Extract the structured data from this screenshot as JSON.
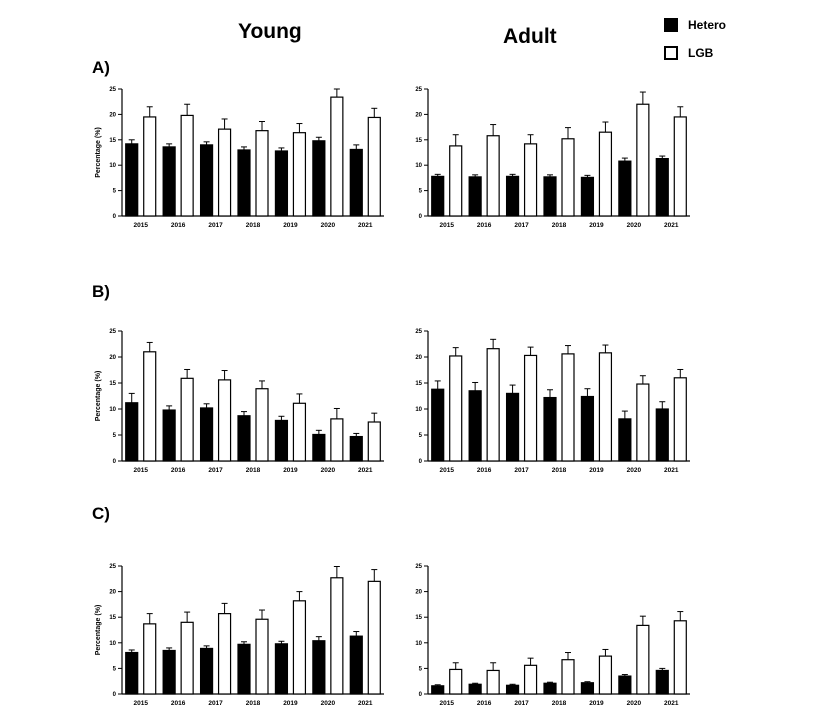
{
  "columns": [
    "Young",
    "Adult"
  ],
  "rows": [
    "A)",
    "B)",
    "C)"
  ],
  "legend": [
    {
      "name": "Hetero",
      "color": "#000000"
    },
    {
      "name": "LGB",
      "color": "#ffffff"
    }
  ],
  "chart_data": [
    {
      "type": "bar",
      "panel": "A) Young",
      "ylabel": "Percentage (%)",
      "ylim": [
        0,
        25
      ],
      "yticks": [
        0,
        5,
        10,
        15,
        20,
        25
      ],
      "categories": [
        "2015",
        "2016",
        "2017",
        "2018",
        "2019",
        "2020",
        "2021"
      ],
      "series": [
        {
          "name": "Hetero",
          "values": [
            14.2,
            13.6,
            14.0,
            13.0,
            12.8,
            14.8,
            13.1
          ],
          "errors": [
            0.8,
            0.6,
            0.6,
            0.6,
            0.6,
            0.7,
            0.9
          ]
        },
        {
          "name": "LGB",
          "values": [
            19.5,
            19.8,
            17.1,
            16.8,
            16.4,
            23.4,
            19.4
          ],
          "errors": [
            2.0,
            2.2,
            2.0,
            1.8,
            1.8,
            1.6,
            1.8
          ]
        }
      ]
    },
    {
      "type": "bar",
      "panel": "A) Adult",
      "ylabel": "",
      "ylim": [
        0,
        25
      ],
      "yticks": [
        0,
        5,
        10,
        15,
        20,
        25
      ],
      "categories": [
        "2015",
        "2016",
        "2017",
        "2018",
        "2019",
        "2020",
        "2021"
      ],
      "series": [
        {
          "name": "Hetero",
          "values": [
            7.8,
            7.7,
            7.8,
            7.7,
            7.6,
            10.8,
            11.3
          ],
          "errors": [
            0.4,
            0.4,
            0.4,
            0.4,
            0.4,
            0.6,
            0.5
          ]
        },
        {
          "name": "LGB",
          "values": [
            13.8,
            15.8,
            14.2,
            15.2,
            16.5,
            22.0,
            19.5
          ],
          "errors": [
            2.2,
            2.2,
            1.8,
            2.2,
            2.0,
            2.4,
            2.0
          ]
        }
      ]
    },
    {
      "type": "bar",
      "panel": "B) Young",
      "ylabel": "Percentage (%)",
      "ylim": [
        0,
        25
      ],
      "yticks": [
        0,
        5,
        10,
        15,
        20,
        25
      ],
      "categories": [
        "2015",
        "2016",
        "2017",
        "2018",
        "2019",
        "2020",
        "2021"
      ],
      "series": [
        {
          "name": "Hetero",
          "values": [
            11.2,
            9.8,
            10.2,
            8.7,
            7.8,
            5.1,
            4.7
          ],
          "errors": [
            1.8,
            0.8,
            0.8,
            0.8,
            0.8,
            0.8,
            0.6
          ]
        },
        {
          "name": "LGB",
          "values": [
            21.0,
            15.9,
            15.6,
            13.9,
            11.1,
            8.1,
            7.5
          ],
          "errors": [
            1.8,
            1.7,
            1.8,
            1.5,
            1.8,
            2.0,
            1.7
          ]
        }
      ]
    },
    {
      "type": "bar",
      "panel": "B) Adult",
      "ylabel": "",
      "ylim": [
        0,
        25
      ],
      "yticks": [
        0,
        5,
        10,
        15,
        20,
        25
      ],
      "categories": [
        "2015",
        "2016",
        "2017",
        "2018",
        "2019",
        "2020",
        "2021"
      ],
      "series": [
        {
          "name": "Hetero",
          "values": [
            13.8,
            13.5,
            13.0,
            12.2,
            12.4,
            8.1,
            10.0
          ],
          "errors": [
            1.6,
            1.6,
            1.6,
            1.5,
            1.5,
            1.5,
            1.4
          ]
        },
        {
          "name": "LGB",
          "values": [
            20.2,
            21.6,
            20.3,
            20.6,
            20.8,
            14.8,
            16.0
          ],
          "errors": [
            1.6,
            1.8,
            1.6,
            1.6,
            1.5,
            1.6,
            1.6
          ]
        }
      ]
    },
    {
      "type": "bar",
      "panel": "C) Young",
      "ylabel": "Percentage (%)",
      "ylim": [
        0,
        25
      ],
      "yticks": [
        0,
        5,
        10,
        15,
        20,
        25
      ],
      "categories": [
        "2015",
        "2016",
        "2017",
        "2018",
        "2019",
        "2020",
        "2021"
      ],
      "series": [
        {
          "name": "Hetero",
          "values": [
            8.1,
            8.5,
            8.9,
            9.7,
            9.8,
            10.4,
            11.3
          ],
          "errors": [
            0.5,
            0.5,
            0.5,
            0.5,
            0.5,
            0.8,
            0.9
          ]
        },
        {
          "name": "LGB",
          "values": [
            13.7,
            14.0,
            15.7,
            14.6,
            18.2,
            22.7,
            22.0
          ],
          "errors": [
            2.0,
            2.0,
            2.0,
            1.8,
            1.8,
            2.2,
            2.3
          ]
        }
      ]
    },
    {
      "type": "bar",
      "panel": "C) Adult",
      "ylabel": "",
      "ylim": [
        0,
        25
      ],
      "yticks": [
        0,
        5,
        10,
        15,
        20,
        25
      ],
      "categories": [
        "2015",
        "2016",
        "2017",
        "2018",
        "2019",
        "2020",
        "2021"
      ],
      "series": [
        {
          "name": "Hetero",
          "values": [
            1.6,
            1.9,
            1.7,
            2.1,
            2.2,
            3.5,
            4.6
          ],
          "errors": [
            0.2,
            0.2,
            0.2,
            0.2,
            0.2,
            0.3,
            0.4
          ]
        },
        {
          "name": "LGB",
          "values": [
            4.8,
            4.6,
            5.6,
            6.7,
            7.4,
            13.4,
            14.3
          ],
          "errors": [
            1.3,
            1.5,
            1.4,
            1.4,
            1.3,
            1.8,
            1.8
          ]
        }
      ]
    }
  ]
}
